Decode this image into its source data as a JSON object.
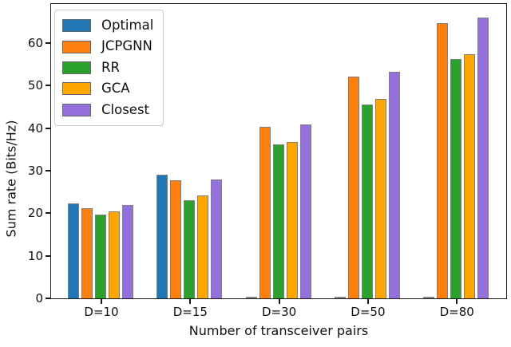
{
  "chart_data": {
    "type": "bar",
    "title": "",
    "xlabel": "Number of transceiver pairs",
    "ylabel": "Sum rate (Bits/Hz)",
    "categories": [
      "D=10",
      "D=15",
      "D=30",
      "D=50",
      "D=80"
    ],
    "series": [
      {
        "name": "Optimal",
        "color": "#1f77b4",
        "values": [
          22.3,
          29.1,
          0,
          0,
          0
        ]
      },
      {
        "name": "JCPGNN",
        "color": "#ff7f0e",
        "values": [
          21.2,
          27.7,
          40.4,
          52.1,
          64.6
        ]
      },
      {
        "name": "RR",
        "color": "#2ca02c",
        "values": [
          19.6,
          23.1,
          36.2,
          45.6,
          56.2
        ]
      },
      {
        "name": "GCA",
        "color": "#ffa500",
        "values": [
          20.4,
          24.1,
          36.8,
          46.8,
          57.4
        ]
      },
      {
        "name": "Closest",
        "color": "#9370db",
        "values": [
          21.9,
          28.0,
          40.9,
          53.2,
          66.0
        ]
      }
    ],
    "yticks": [
      0,
      10,
      20,
      30,
      40,
      50,
      60
    ],
    "ylim": [
      0,
      69
    ],
    "grid": false,
    "legend_position": "upper left",
    "bar_edge_color": "#7f7f7f"
  }
}
